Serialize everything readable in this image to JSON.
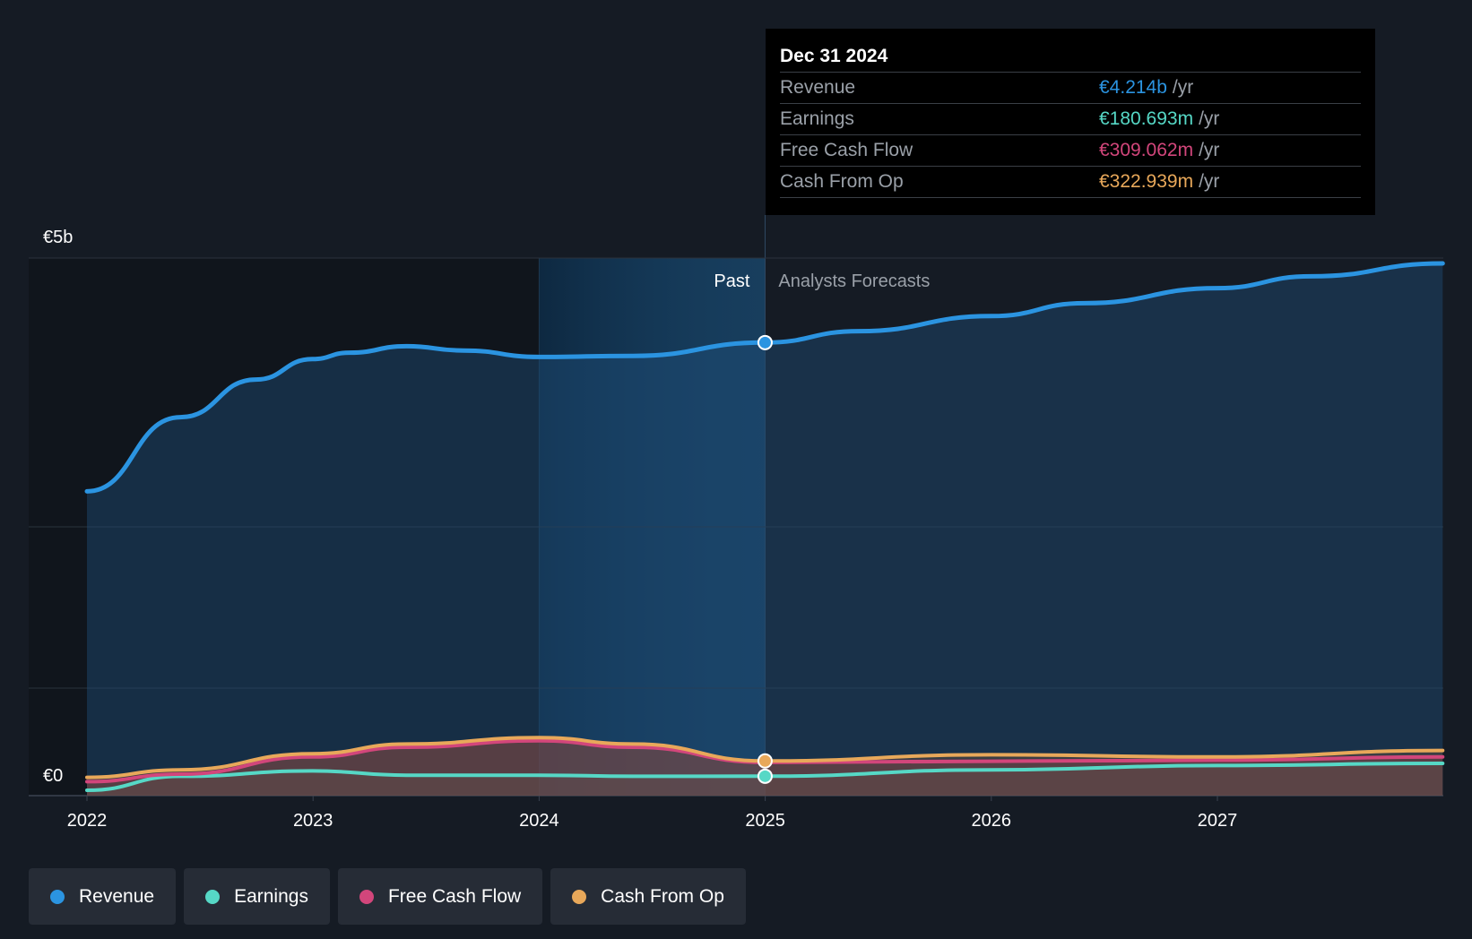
{
  "chart_data": {
    "type": "area",
    "y_label_top": "€5b",
    "y_label_bottom": "€0",
    "ylim": [
      0,
      5
    ],
    "y_unit": "€ billions",
    "x_ticks": [
      "2022",
      "2023",
      "2024",
      "2025",
      "2026",
      "2027"
    ],
    "divider_date": "2024-12-31",
    "highlight_start": "2024-01-01",
    "past_label": "Past",
    "forecast_label": "Analysts Forecasts",
    "grid": true,
    "series": [
      {
        "name": "Revenue",
        "color": "#2b94e1",
        "points": [
          [
            "2022-01-01",
            2.83
          ],
          [
            "2022-06-01",
            3.52
          ],
          [
            "2022-10-01",
            3.87
          ],
          [
            "2022-12-31",
            4.06
          ],
          [
            "2023-03-01",
            4.12
          ],
          [
            "2023-06-01",
            4.18
          ],
          [
            "2023-09-01",
            4.14
          ],
          [
            "2024-01-01",
            4.08
          ],
          [
            "2024-06-01",
            4.09
          ],
          [
            "2024-12-31",
            4.214
          ],
          [
            "2025-06-01",
            4.32
          ],
          [
            "2026-01-01",
            4.46
          ],
          [
            "2026-06-01",
            4.58
          ],
          [
            "2027-01-01",
            4.72
          ],
          [
            "2027-06-01",
            4.83
          ],
          [
            "2027-12-31",
            4.95
          ]
        ]
      },
      {
        "name": "Earnings",
        "color": "#56d8c6",
        "points": [
          [
            "2022-01-01",
            0.05
          ],
          [
            "2022-06-01",
            0.18
          ],
          [
            "2022-12-31",
            0.23
          ],
          [
            "2023-06-01",
            0.19
          ],
          [
            "2024-01-01",
            0.19
          ],
          [
            "2024-06-01",
            0.18
          ],
          [
            "2024-12-31",
            0.1807
          ],
          [
            "2026-01-01",
            0.24
          ],
          [
            "2027-01-01",
            0.28
          ],
          [
            "2027-12-31",
            0.3
          ]
        ]
      },
      {
        "name": "Free Cash Flow",
        "color": "#d2467b",
        "points": [
          [
            "2022-01-01",
            0.13
          ],
          [
            "2022-06-01",
            0.2
          ],
          [
            "2022-12-31",
            0.36
          ],
          [
            "2023-06-01",
            0.45
          ],
          [
            "2024-01-01",
            0.51
          ],
          [
            "2024-06-01",
            0.45
          ],
          [
            "2024-12-31",
            0.3091
          ],
          [
            "2026-01-01",
            0.32
          ],
          [
            "2027-01-01",
            0.33
          ],
          [
            "2027-12-31",
            0.36
          ]
        ]
      },
      {
        "name": "Cash From Op",
        "color": "#e8a85a",
        "points": [
          [
            "2022-01-01",
            0.17
          ],
          [
            "2022-06-01",
            0.24
          ],
          [
            "2022-12-31",
            0.39
          ],
          [
            "2023-06-01",
            0.48
          ],
          [
            "2024-01-01",
            0.54
          ],
          [
            "2024-06-01",
            0.48
          ],
          [
            "2024-12-31",
            0.3229
          ],
          [
            "2026-01-01",
            0.38
          ],
          [
            "2027-01-01",
            0.36
          ],
          [
            "2027-12-31",
            0.42
          ]
        ]
      }
    ]
  },
  "tooltip": {
    "date": "Dec 31 2024",
    "unit": "/yr",
    "rows": [
      {
        "label": "Revenue",
        "value": "€4.214b",
        "color": "#2b94e1"
      },
      {
        "label": "Earnings",
        "value": "€180.693m",
        "color": "#56d8c6"
      },
      {
        "label": "Free Cash Flow",
        "value": "€309.062m",
        "color": "#d2467b"
      },
      {
        "label": "Cash From Op",
        "value": "€322.939m",
        "color": "#e8a85a"
      }
    ]
  },
  "legend": [
    {
      "label": "Revenue",
      "color": "#2b94e1"
    },
    {
      "label": "Earnings",
      "color": "#56d8c6"
    },
    {
      "label": "Free Cash Flow",
      "color": "#d2467b"
    },
    {
      "label": "Cash From Op",
      "color": "#e8a85a"
    }
  ]
}
